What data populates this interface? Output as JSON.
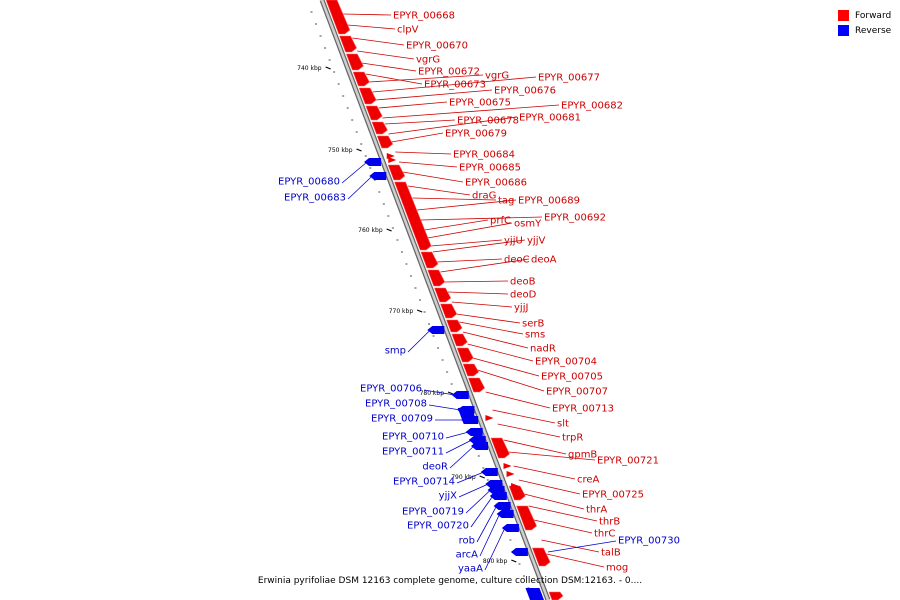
{
  "caption": "Erwinia pyrifoliae DSM 12163 complete genome, culture collection DSM:12163. - 0....",
  "legend": [
    {
      "label": "Forward",
      "color": "#ff0000"
    },
    {
      "label": "Reverse",
      "color": "#0000ff"
    }
  ],
  "colors": {
    "forward": "#ee0000",
    "forward_label": "#cc0000",
    "reverse": "#0000ee",
    "reverse_label": "#0000cc",
    "backbone": "#999999"
  },
  "ticks": [
    "740 kbp",
    "750 kbp",
    "760 kbp",
    "770 kbp",
    "780 kbp",
    "790 kbp",
    "800 kbp"
  ],
  "forward_genes": [
    "EPYR_00668",
    "clpV",
    "EPYR_00670",
    "vgrG",
    "EPYR_00672",
    "EPYR_00673",
    "vgrG",
    "EPYR_00677",
    "EPYR_00676",
    "EPYR_00675",
    "EPYR_00682",
    "EPYR_00678",
    "EPYR_00681",
    "EPYR_00679",
    "EPYR_00684",
    "EPYR_00685",
    "EPYR_00686",
    "draG",
    "tag",
    "EPYR_00689",
    "EPYR_00692",
    "prfC",
    "osmY",
    "yjjU",
    "yjjV",
    "deoC",
    "deoA",
    "deoB",
    "deoD",
    "yjjJ",
    "serB",
    "sms",
    "nadR",
    "EPYR_00704",
    "EPYR_00705",
    "EPYR_00707",
    "EPYR_00713",
    "slt",
    "trpR",
    "gpmB",
    "EPYR_00721",
    "creA",
    "EPYR_00725",
    "thrA",
    "thrB",
    "thrC",
    "talB",
    "mog"
  ],
  "reverse_genes": [
    "EPYR_00680",
    "EPYR_00683",
    "smp",
    "EPYR_00706",
    "EPYR_00708",
    "EPYR_00709",
    "EPYR_00710",
    "EPYR_00711",
    "deoR",
    "EPYR_00714",
    "yjjX",
    "EPYR_00719",
    "EPYR_00720",
    "rob",
    "arcA",
    "yaaA",
    "EPYR_00730"
  ]
}
